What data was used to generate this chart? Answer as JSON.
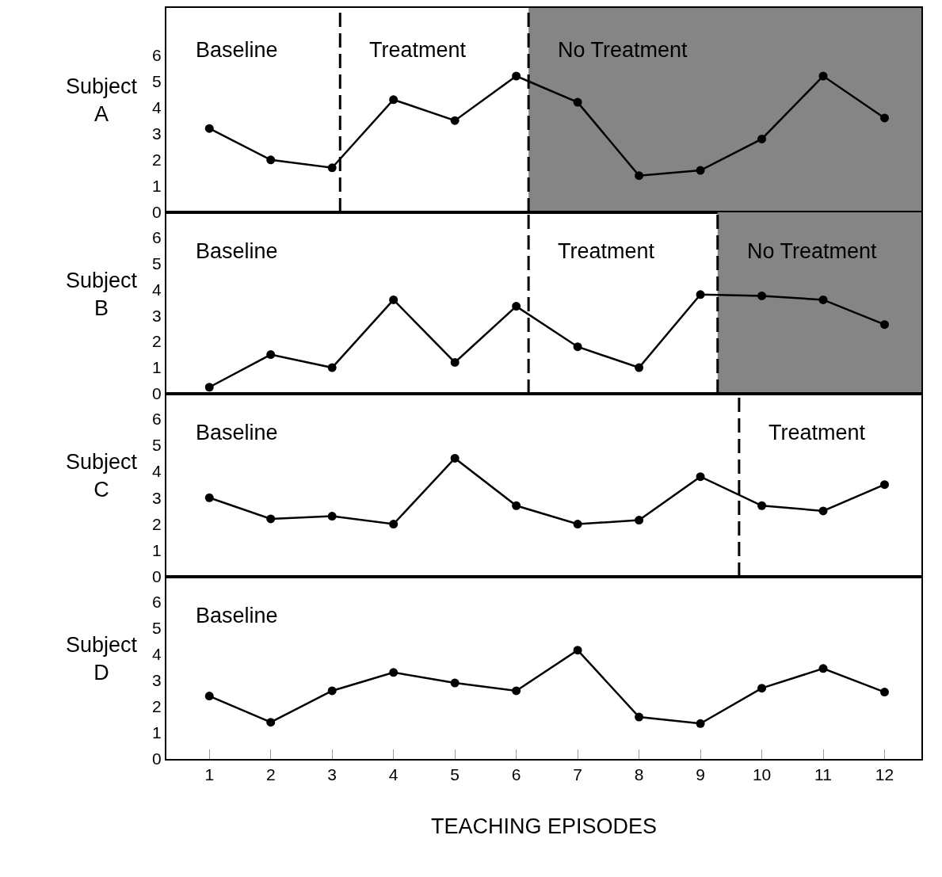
{
  "chart_data": [
    {
      "type": "line",
      "ylabel": "Subject A",
      "x": [
        1,
        2,
        3,
        4,
        5,
        6,
        7,
        8,
        9,
        10,
        11,
        12
      ],
      "color": "#000000",
      "marker": "circle",
      "values": [
        3.2,
        2.0,
        1.7,
        4.3,
        3.5,
        5.2,
        4.2,
        1.4,
        1.6,
        2.8,
        5.2,
        3.6
      ],
      "xlim": [
        0.3,
        12.6
      ],
      "xticks": [
        1,
        2,
        3,
        4,
        5,
        6,
        7,
        8,
        9,
        10,
        11,
        12
      ],
      "ylim": [
        0,
        7.8
      ],
      "yticks": [
        0,
        1,
        2,
        3,
        4,
        5,
        6
      ],
      "tick_labels": "y",
      "ref_lines": [
        {
          "axis": "x",
          "value": 3.13,
          "label": null,
          "line_style": "dashed"
        },
        {
          "axis": "x",
          "value": 6.2,
          "label": null,
          "line_style": "dashed"
        }
      ],
      "bands": [
        {
          "axis": "x",
          "from": 6.2,
          "to": 12.6,
          "label": "No Treatment",
          "color": "#858585"
        }
      ],
      "annotations": [
        "Baseline",
        "Treatment"
      ]
    },
    {
      "type": "line",
      "ylabel": "Subject B",
      "x": [
        1,
        2,
        3,
        4,
        5,
        6,
        7,
        8,
        9,
        10,
        11,
        12
      ],
      "color": "#000000",
      "marker": "circle",
      "values": [
        0.25,
        1.5,
        1.0,
        3.6,
        1.2,
        3.35,
        1.8,
        1.0,
        3.8,
        3.75,
        3.6,
        2.65
      ],
      "xlim": [
        0.3,
        12.6
      ],
      "xticks": [
        1,
        2,
        3,
        4,
        5,
        6,
        7,
        8,
        9,
        10,
        11,
        12
      ],
      "ylim": [
        0,
        6.95
      ],
      "yticks": [
        0,
        1,
        2,
        3,
        4,
        5,
        6
      ],
      "tick_labels": "y",
      "ref_lines": [
        {
          "axis": "x",
          "value": 6.2,
          "label": null,
          "line_style": "dashed"
        },
        {
          "axis": "x",
          "value": 9.28,
          "label": null,
          "line_style": "dashed"
        }
      ],
      "bands": [
        {
          "axis": "x",
          "from": 9.28,
          "to": 12.6,
          "label": "No Treatment",
          "color": "#858585"
        }
      ],
      "annotations": [
        "Baseline",
        "Treatment"
      ]
    },
    {
      "type": "line",
      "ylabel": "Subject C",
      "x": [
        1,
        2,
        3,
        4,
        5,
        6,
        7,
        8,
        9,
        10,
        11,
        12
      ],
      "color": "#000000",
      "marker": "circle",
      "values": [
        3.0,
        2.2,
        2.3,
        2.0,
        4.5,
        2.7,
        2.0,
        2.15,
        3.8,
        2.7,
        2.5,
        3.5
      ],
      "xlim": [
        0.3,
        12.6
      ],
      "xticks": [
        1,
        2,
        3,
        4,
        5,
        6,
        7,
        8,
        9,
        10,
        11,
        12
      ],
      "ylim": [
        0,
        6.95
      ],
      "yticks": [
        0,
        1,
        2,
        3,
        4,
        5,
        6
      ],
      "tick_labels": "y",
      "ref_lines": [
        {
          "axis": "x",
          "value": 9.63,
          "label": null,
          "line_style": "dashed"
        }
      ],
      "annotations": [
        "Baseline",
        "Treatment"
      ]
    },
    {
      "type": "line",
      "ylabel": "Subject D",
      "xlabel": "TEACHING EPISODES",
      "x": [
        1,
        2,
        3,
        4,
        5,
        6,
        7,
        8,
        9,
        10,
        11,
        12
      ],
      "color": "#000000",
      "marker": "circle",
      "values": [
        2.4,
        1.4,
        2.6,
        3.3,
        2.9,
        2.6,
        4.15,
        1.6,
        1.35,
        2.7,
        3.45,
        2.55
      ],
      "xlim": [
        0.3,
        12.6
      ],
      "xticks": [
        1,
        2,
        3,
        4,
        5,
        6,
        7,
        8,
        9,
        10,
        11,
        12
      ],
      "ylim": [
        0,
        6.95
      ],
      "yticks": [
        0,
        1,
        2,
        3,
        4,
        5,
        6
      ],
      "annotations": [
        "Baseline"
      ]
    }
  ]
}
